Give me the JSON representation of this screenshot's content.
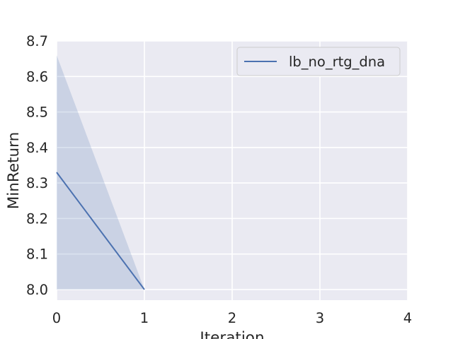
{
  "chart_data": {
    "type": "line",
    "title": "",
    "xlabel": "Iteration",
    "ylabel": "MinReturn",
    "xlim": [
      0,
      4
    ],
    "ylim": [
      7.97,
      8.7
    ],
    "x_ticks": [
      "0",
      "1",
      "2",
      "3",
      "4"
    ],
    "y_ticks": [
      "8.0",
      "8.1",
      "8.2",
      "8.3",
      "8.4",
      "8.5",
      "8.6",
      "8.7"
    ],
    "grid": true,
    "legend_position": "top-right",
    "series": [
      {
        "name": "lb_no_rtg_dna",
        "color": "#4c72b0",
        "x": [
          0,
          1
        ],
        "y": [
          8.33,
          8.0
        ],
        "band_lower": [
          8.0,
          8.0
        ],
        "band_upper": [
          8.66,
          8.0
        ]
      }
    ],
    "background_color": "#eaeaf2",
    "grid_color": "#ffffff"
  }
}
